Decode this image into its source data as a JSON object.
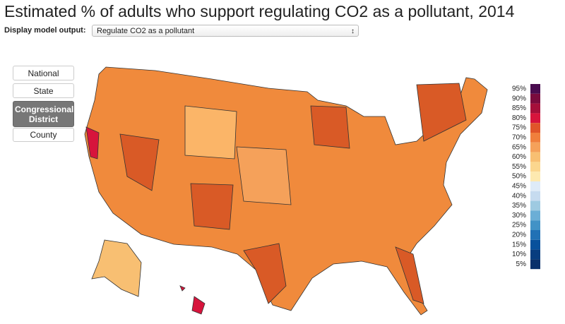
{
  "header": {
    "title": "Estimated % of adults who support regulating CO2 as a pollutant, 2014"
  },
  "controls": {
    "label": "Display model output:",
    "selected": "Regulate CO2 as a pollutant"
  },
  "levels": {
    "options": [
      "National",
      "State",
      "Congressional District",
      "County"
    ],
    "active": 2
  },
  "legend": {
    "items": [
      {
        "label": "95%",
        "color": "#4a0c4f"
      },
      {
        "label": "90%",
        "color": "#7a0b3d"
      },
      {
        "label": "85%",
        "color": "#a50f3a"
      },
      {
        "label": "80%",
        "color": "#d7143c"
      },
      {
        "label": "75%",
        "color": "#e0552a"
      },
      {
        "label": "70%",
        "color": "#f07f3c"
      },
      {
        "label": "65%",
        "color": "#f5a15a"
      },
      {
        "label": "60%",
        "color": "#f8bf72"
      },
      {
        "label": "55%",
        "color": "#fbd68e"
      },
      {
        "label": "50%",
        "color": "#fde9b0"
      },
      {
        "label": "45%",
        "color": "#deebf7"
      },
      {
        "label": "40%",
        "color": "#c6dbef"
      },
      {
        "label": "35%",
        "color": "#9ecae1"
      },
      {
        "label": "30%",
        "color": "#6baed6"
      },
      {
        "label": "25%",
        "color": "#4292c6"
      },
      {
        "label": "20%",
        "color": "#2171b5"
      },
      {
        "label": "15%",
        "color": "#08519c"
      },
      {
        "label": "10%",
        "color": "#083d7f"
      },
      {
        "label": "5%",
        "color": "#08306b"
      }
    ]
  }
}
